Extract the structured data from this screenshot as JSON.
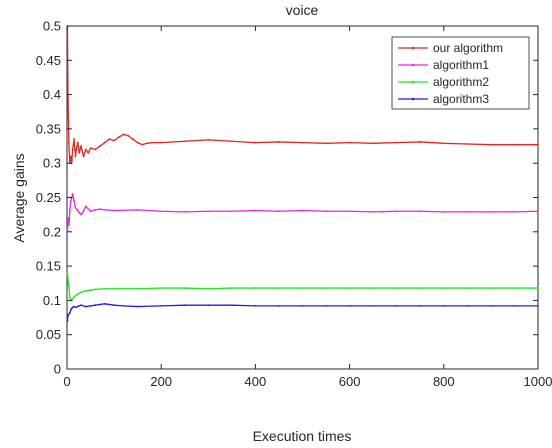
{
  "chart_data": {
    "type": "line",
    "title": "voice",
    "xlabel": "Execution times",
    "ylabel": "Average gains",
    "xlim": [
      0,
      1000
    ],
    "ylim": [
      0,
      0.5
    ],
    "xticks": [
      0,
      200,
      400,
      600,
      800,
      1000
    ],
    "xtick_labels": [
      "0",
      "200",
      "400",
      "600",
      "800",
      "1000"
    ],
    "yticks": [
      0,
      0.05,
      0.1,
      0.15,
      0.2,
      0.25,
      0.3,
      0.35,
      0.4,
      0.45,
      0.5
    ],
    "ytick_labels": [
      "0",
      "0.05",
      "0.1",
      "0.15",
      "0.2",
      "0.25",
      "0.3",
      "0.35",
      "0.4",
      "0.45",
      "0.5"
    ],
    "grid": false,
    "legend_position": "top-right",
    "series": [
      {
        "name": "our algorithm",
        "color": "#e8221e",
        "x": [
          1,
          2,
          4,
          6,
          8,
          10,
          12,
          15,
          18,
          20,
          23,
          26,
          30,
          35,
          40,
          45,
          50,
          60,
          70,
          80,
          90,
          100,
          110,
          120,
          130,
          140,
          150,
          160,
          170,
          180,
          200,
          250,
          300,
          350,
          400,
          450,
          500,
          550,
          600,
          650,
          700,
          750,
          800,
          850,
          900,
          950,
          1000
        ],
        "y": [
          0.5,
          0.4,
          0.33,
          0.3,
          0.31,
          0.3,
          0.32,
          0.335,
          0.31,
          0.32,
          0.33,
          0.315,
          0.325,
          0.31,
          0.32,
          0.315,
          0.322,
          0.32,
          0.325,
          0.33,
          0.335,
          0.333,
          0.338,
          0.342,
          0.34,
          0.335,
          0.33,
          0.327,
          0.329,
          0.33,
          0.33,
          0.332,
          0.334,
          0.332,
          0.33,
          0.331,
          0.33,
          0.329,
          0.33,
          0.329,
          0.33,
          0.331,
          0.329,
          0.328,
          0.327,
          0.327,
          0.327
        ]
      },
      {
        "name": "algorithm1",
        "color": "#e623e6",
        "x": [
          1,
          2,
          4,
          6,
          8,
          10,
          12,
          15,
          18,
          22,
          26,
          30,
          35,
          40,
          50,
          60,
          70,
          80,
          100,
          150,
          200,
          250,
          300,
          350,
          400,
          450,
          500,
          550,
          600,
          650,
          700,
          750,
          800,
          850,
          900,
          950,
          1000
        ],
        "y": [
          0.2,
          0.22,
          0.21,
          0.23,
          0.245,
          0.25,
          0.255,
          0.245,
          0.235,
          0.232,
          0.228,
          0.225,
          0.23,
          0.237,
          0.23,
          0.232,
          0.233,
          0.232,
          0.231,
          0.232,
          0.23,
          0.229,
          0.23,
          0.23,
          0.231,
          0.23,
          0.231,
          0.23,
          0.23,
          0.229,
          0.23,
          0.23,
          0.229,
          0.229,
          0.229,
          0.229,
          0.23
        ]
      },
      {
        "name": "algorithm2",
        "color": "#1ee61e",
        "x": [
          1,
          2,
          4,
          6,
          8,
          10,
          12,
          15,
          20,
          25,
          30,
          40,
          50,
          60,
          80,
          100,
          150,
          200,
          250,
          300,
          350,
          400,
          450,
          500,
          550,
          600,
          650,
          700,
          750,
          800,
          850,
          900,
          950,
          1000
        ],
        "y": [
          0.14,
          0.13,
          0.12,
          0.105,
          0.1,
          0.1,
          0.102,
          0.105,
          0.108,
          0.11,
          0.112,
          0.114,
          0.115,
          0.116,
          0.117,
          0.117,
          0.117,
          0.118,
          0.118,
          0.117,
          0.118,
          0.118,
          0.118,
          0.118,
          0.118,
          0.118,
          0.118,
          0.118,
          0.118,
          0.118,
          0.118,
          0.118,
          0.118,
          0.118
        ]
      },
      {
        "name": "algorithm3",
        "color": "#1e1ee6",
        "x": [
          1,
          2,
          4,
          6,
          8,
          10,
          12,
          15,
          20,
          25,
          30,
          40,
          50,
          60,
          70,
          80,
          90,
          100,
          120,
          150,
          200,
          250,
          300,
          350,
          400,
          450,
          500,
          550,
          600,
          650,
          700,
          750,
          800,
          850,
          900,
          950,
          1000
        ],
        "y": [
          0.07,
          0.078,
          0.08,
          0.082,
          0.086,
          0.088,
          0.09,
          0.091,
          0.09,
          0.092,
          0.093,
          0.091,
          0.092,
          0.093,
          0.094,
          0.095,
          0.094,
          0.093,
          0.092,
          0.091,
          0.092,
          0.093,
          0.093,
          0.093,
          0.092,
          0.092,
          0.092,
          0.092,
          0.092,
          0.092,
          0.092,
          0.092,
          0.092,
          0.092,
          0.092,
          0.092,
          0.092
        ]
      }
    ]
  }
}
